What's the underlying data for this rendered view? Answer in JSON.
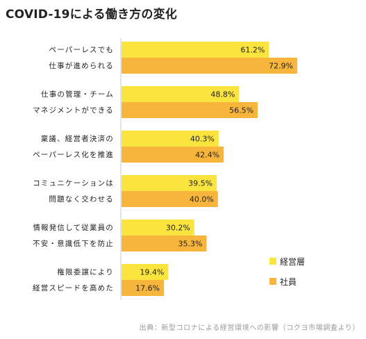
{
  "chart_data": {
    "type": "bar",
    "orientation": "horizontal",
    "title": "COVID-19による働き方の変化",
    "categories": [
      [
        "ペーパーレスでも",
        "仕事が進められる"
      ],
      [
        "仕事の管理・チーム",
        "マネジメントができる"
      ],
      [
        "稟議、経営者決済の",
        "ペーパーレス化を推進"
      ],
      [
        "コミュニケーションは",
        "問題なく交わせる"
      ],
      [
        "情報発信して従業員の",
        "不安・意識低下を防止"
      ],
      [
        "権限委譲により",
        "経営スピードを高めた"
      ]
    ],
    "series": [
      {
        "name": "経営層",
        "color": "#fbe43e",
        "values": [
          61.2,
          48.8,
          40.3,
          39.5,
          30.2,
          19.4
        ]
      },
      {
        "name": "社員",
        "color": "#f7b53b",
        "values": [
          72.9,
          56.5,
          42.4,
          40.0,
          35.3,
          17.6
        ]
      }
    ],
    "value_suffix": "%",
    "xlim": [
      0,
      100
    ],
    "legend_position": "right",
    "grid": false
  },
  "source": "出典：新型コロナによる経営環境への影響（コクヨ市場調査より）"
}
